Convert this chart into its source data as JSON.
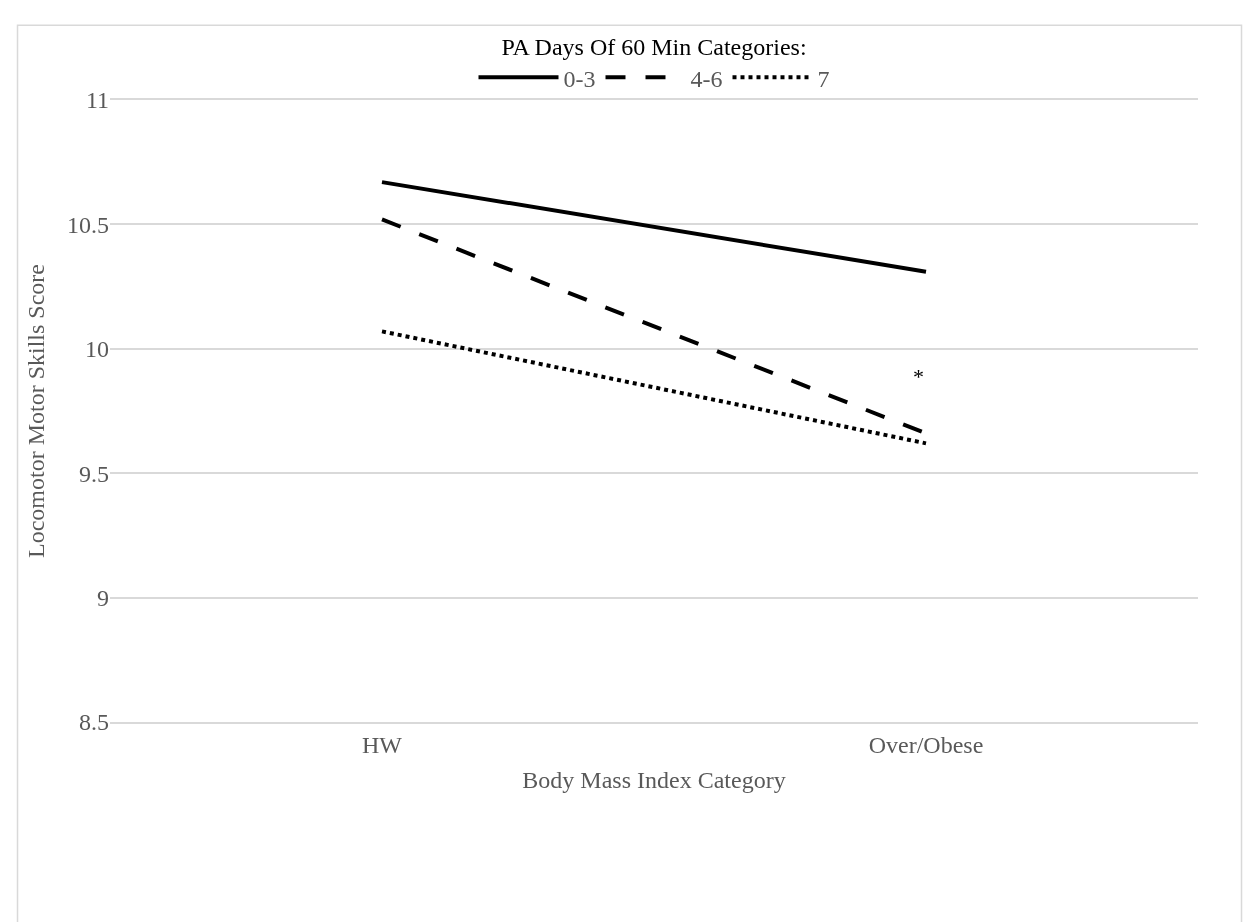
{
  "chart_data": {
    "type": "line",
    "xlabel": "Body Mass Index Category",
    "ylabel": "Locomotor Motor Skills Score",
    "legend_title": "PA Days Of 60 Min Categories:",
    "categories": [
      "HW",
      "Over/Obese"
    ],
    "series": [
      {
        "name": "0-3",
        "color": "#000000",
        "values": [
          10.67,
          10.31
        ],
        "line_style": "solid"
      },
      {
        "name": "4-6",
        "color": "#000000",
        "values": [
          10.52,
          9.66
        ],
        "line_style": "dashed"
      },
      {
        "name": "7",
        "color": "#000000",
        "values": [
          10.07,
          9.62
        ],
        "line_style": "dotted"
      }
    ],
    "ylim": [
      8.5,
      11
    ],
    "yticks": [
      8.5,
      9,
      9.5,
      10,
      10.5,
      11
    ],
    "grid": "y",
    "legend": "top",
    "marker": "none",
    "annotations": [
      "*"
    ]
  }
}
